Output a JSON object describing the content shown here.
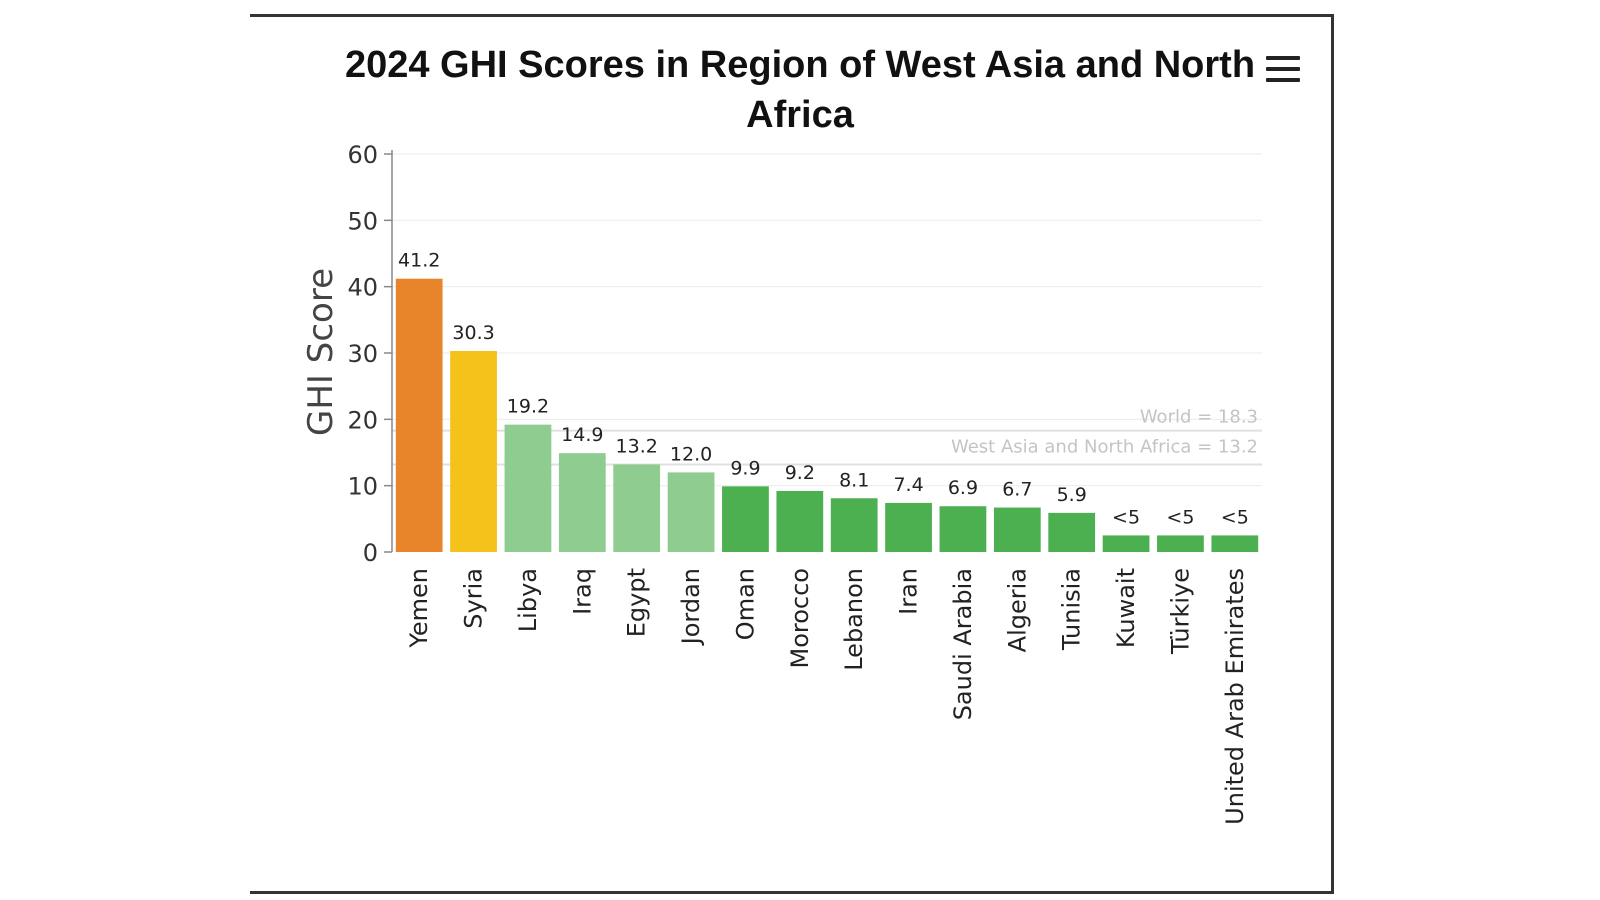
{
  "chart_data": {
    "type": "bar",
    "title": "2024 GHI Scores in Region of West Asia and North Africa",
    "ylabel": "GHI Score",
    "xlabel": "",
    "ylim": [
      0,
      60
    ],
    "yticks": [
      0,
      10,
      20,
      30,
      40,
      50,
      60
    ],
    "grid": true,
    "categories": [
      "Yemen",
      "Syria",
      "Libya",
      "Iraq",
      "Egypt",
      "Jordan",
      "Oman",
      "Morocco",
      "Lebanon",
      "Iran",
      "Saudi Arabia",
      "Algeria",
      "Tunisia",
      "Kuwait",
      "Türkiye",
      "United Arab Emirates"
    ],
    "values": [
      41.2,
      30.3,
      19.2,
      14.9,
      13.2,
      12.0,
      9.9,
      9.2,
      8.1,
      7.4,
      6.9,
      6.7,
      5.9,
      2.5,
      2.5,
      2.5
    ],
    "data_labels": [
      "41.2",
      "30.3",
      "19.2",
      "14.9",
      "13.2",
      "12.0",
      "9.9",
      "9.2",
      "8.1",
      "7.4",
      "6.9",
      "6.7",
      "5.9",
      "<5",
      "<5",
      "<5"
    ],
    "colors": [
      "#e8852b",
      "#f5c21b",
      "#8fcc8f",
      "#8fcc8f",
      "#8fcc8f",
      "#8fcc8f",
      "#4caf50",
      "#4caf50",
      "#4caf50",
      "#4caf50",
      "#4caf50",
      "#4caf50",
      "#4caf50",
      "#4caf50",
      "#4caf50",
      "#4caf50"
    ],
    "reference_lines": [
      {
        "label": "World = 18.3",
        "value": 18.3
      },
      {
        "label": "West Asia and North Africa = 13.2",
        "value": 13.2
      }
    ]
  },
  "toolbar": {
    "menu_icon": "hamburger-menu-icon"
  }
}
